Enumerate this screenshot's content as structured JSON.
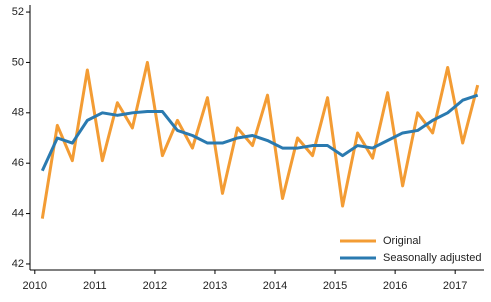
{
  "chart_data": {
    "type": "line",
    "x": [
      2010.125,
      2010.375,
      2010.625,
      2010.875,
      2011.125,
      2011.375,
      2011.625,
      2011.875,
      2012.125,
      2012.375,
      2012.625,
      2012.875,
      2013.125,
      2013.375,
      2013.625,
      2013.875,
      2014.125,
      2014.375,
      2014.625,
      2014.875,
      2015.125,
      2015.375,
      2015.625,
      2015.875,
      2016.125,
      2016.375,
      2016.625,
      2016.875,
      2017.125,
      2017.375
    ],
    "series": [
      {
        "name": "Original",
        "color": "#f39c34",
        "values": [
          43.8,
          47.5,
          46.1,
          49.7,
          46.1,
          48.4,
          47.4,
          50.0,
          46.3,
          47.7,
          46.6,
          48.6,
          44.8,
          47.4,
          46.7,
          48.7,
          44.6,
          47.0,
          46.3,
          48.6,
          44.3,
          47.2,
          46.2,
          48.8,
          45.1,
          48.0,
          47.2,
          49.8,
          46.8,
          49.1
        ]
      },
      {
        "name": "Seasonally adjusted",
        "color": "#2a7ab0",
        "values": [
          45.7,
          47.0,
          46.8,
          47.7,
          48.0,
          47.9,
          48.0,
          48.05,
          48.05,
          47.3,
          47.1,
          46.8,
          46.8,
          47.0,
          47.1,
          46.9,
          46.6,
          46.6,
          46.7,
          46.7,
          46.3,
          46.7,
          46.6,
          46.9,
          47.2,
          47.3,
          47.7,
          48.0,
          48.5,
          48.7
        ]
      }
    ],
    "xlim": [
      2009.92,
      2017.48
    ],
    "xticks": [
      2010,
      2011,
      2012,
      2013,
      2014,
      2015,
      2016,
      2017
    ],
    "ylim": [
      41.76,
      52.28
    ],
    "yticks": [
      42,
      44,
      46,
      48,
      50,
      52
    ],
    "legend": "lower-right"
  }
}
